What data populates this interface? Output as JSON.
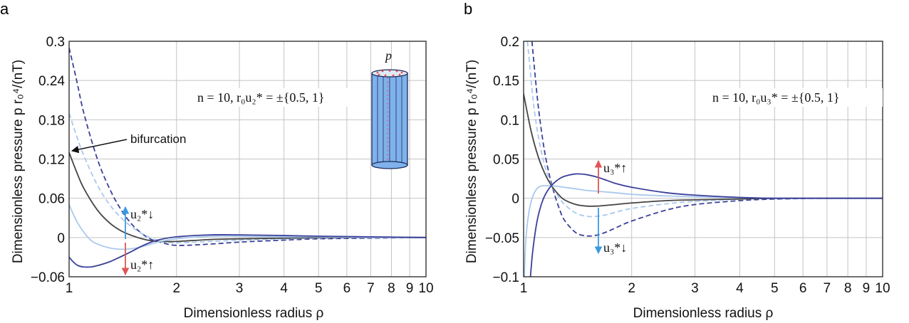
{
  "chart_data": [
    {
      "panel": "a",
      "type": "line",
      "xlabel": "Dimensionless radius ρ",
      "ylabel": "Dimensionless pressure p r₀⁴/(nT)",
      "xscale": "log",
      "xlim": [
        1,
        10
      ],
      "ylim": [
        -0.06,
        0.3
      ],
      "xticks": [
        "1",
        "2",
        "3",
        "4",
        "5",
        "6",
        "7",
        "8",
        "9",
        "10"
      ],
      "yticks": [
        "0.3",
        "0.24",
        "0.18",
        "0.12",
        "0.06",
        "0",
        "−0.06"
      ],
      "ytick_values": [
        0.3,
        0.24,
        0.18,
        0.12,
        0.06,
        0,
        -0.06
      ],
      "grid": true,
      "annotation_params": "n = 10,  r₀u₂* = ±{0.5, 1}",
      "annotation_pressure": "p",
      "annotation_bifurcation": "bifurcation",
      "arrow_up_label": "u₂*↓",
      "arrow_down_label": "u₂*↑",
      "series": [
        {
          "style": "dashed",
          "color": "#3b3f9a",
          "x": [
            1,
            1.05,
            1.1,
            1.2,
            1.3,
            1.4,
            1.5,
            1.6,
            1.7,
            1.8,
            2,
            2.5,
            3,
            4,
            5,
            7,
            10
          ],
          "y": [
            0.29,
            0.24,
            0.19,
            0.12,
            0.074,
            0.042,
            0.02,
            0.006,
            -0.003,
            -0.007,
            -0.012,
            -0.01,
            -0.007,
            -0.004,
            -0.002,
            -0.001,
            0
          ]
        },
        {
          "style": "dashed",
          "color": "#a9c9ec",
          "x": [
            1,
            1.05,
            1.1,
            1.2,
            1.3,
            1.4,
            1.5,
            1.6,
            1.7,
            1.8,
            2,
            2.5,
            3,
            4,
            5,
            7,
            10
          ],
          "y": [
            0.19,
            0.155,
            0.125,
            0.08,
            0.05,
            0.03,
            0.016,
            0.006,
            -0.001,
            -0.005,
            -0.008,
            -0.006,
            -0.004,
            -0.002,
            -0.001,
            0,
            0
          ]
        },
        {
          "style": "solid",
          "color": "#444444",
          "x": [
            1,
            1.05,
            1.1,
            1.2,
            1.3,
            1.4,
            1.5,
            1.6,
            1.7,
            1.8,
            2,
            2.5,
            3,
            4,
            5,
            7,
            10
          ],
          "y": [
            0.13,
            0.1,
            0.075,
            0.042,
            0.022,
            0.01,
            0.003,
            -0.002,
            -0.005,
            -0.006,
            -0.006,
            -0.003,
            -0.002,
            -0.001,
            0,
            0,
            0
          ]
        },
        {
          "style": "solid",
          "color": "#a9c9ec",
          "x": [
            1,
            1.05,
            1.1,
            1.15,
            1.2,
            1.3,
            1.4,
            1.5,
            1.6,
            1.7,
            1.8,
            2,
            2.5,
            3,
            4,
            5,
            7,
            10
          ],
          "y": [
            0.05,
            0.025,
            0.008,
            -0.004,
            -0.01,
            -0.016,
            -0.018,
            -0.017,
            -0.014,
            -0.01,
            -0.006,
            -0.002,
            0.002,
            0.002,
            0.001,
            0.001,
            0,
            0
          ]
        },
        {
          "style": "solid",
          "color": "#3b3f9a",
          "x": [
            1,
            1.03,
            1.06,
            1.1,
            1.15,
            1.2,
            1.3,
            1.4,
            1.5,
            1.6,
            1.7,
            1.8,
            2,
            2.5,
            3,
            4,
            5,
            7,
            10
          ],
          "y": [
            -0.03,
            -0.038,
            -0.043,
            -0.045,
            -0.045,
            -0.043,
            -0.037,
            -0.029,
            -0.021,
            -0.013,
            -0.007,
            -0.003,
            0.001,
            0.004,
            0.004,
            0.003,
            0.002,
            0.001,
            0
          ]
        }
      ]
    },
    {
      "panel": "b",
      "type": "line",
      "xlabel": "Dimensionless radius ρ",
      "ylabel": "Dimensionless pressure p r₀⁴/(nT)",
      "xscale": "log",
      "xlim": [
        1,
        10
      ],
      "ylim": [
        -0.1,
        0.2
      ],
      "xticks": [
        "1",
        "2",
        "3",
        "4",
        "5",
        "6",
        "7",
        "8",
        "9",
        "10"
      ],
      "yticks": [
        "0.2",
        "0.15",
        "0.1",
        "0.05",
        "0",
        "−0.05",
        "−0.1"
      ],
      "ytick_values": [
        0.2,
        0.15,
        0.1,
        0.05,
        0,
        -0.05,
        -0.1
      ],
      "grid": true,
      "annotation_params": "n = 10,  r₀u₃* = ±{0.5, 1}",
      "arrow_up_label": "u₃*↑",
      "arrow_down_label": "u₃*↓",
      "series": [
        {
          "style": "dashed",
          "color": "#3b3f9a",
          "x": [
            1.055,
            1.06,
            1.08,
            1.1,
            1.13,
            1.16,
            1.2,
            1.25,
            1.3,
            1.4,
            1.5,
            1.6,
            1.7,
            1.8,
            2,
            2.5,
            3,
            4,
            5,
            7,
            10
          ],
          "y": [
            0.2,
            0.19,
            0.15,
            0.115,
            0.075,
            0.045,
            0.016,
            -0.01,
            -0.028,
            -0.044,
            -0.048,
            -0.047,
            -0.043,
            -0.038,
            -0.029,
            -0.015,
            -0.008,
            -0.003,
            -0.001,
            0,
            0
          ]
        },
        {
          "style": "dashed",
          "color": "#a9c9ec",
          "x": [
            1.025,
            1.04,
            1.06,
            1.08,
            1.1,
            1.13,
            1.16,
            1.2,
            1.25,
            1.3,
            1.4,
            1.5,
            1.6,
            1.7,
            1.8,
            2,
            2.5,
            3,
            4,
            5,
            7,
            10
          ],
          "y": [
            0.2,
            0.17,
            0.13,
            0.1,
            0.078,
            0.052,
            0.033,
            0.015,
            0.002,
            -0.008,
            -0.019,
            -0.023,
            -0.023,
            -0.021,
            -0.018,
            -0.013,
            -0.007,
            -0.004,
            -0.001,
            0,
            0,
            0
          ]
        },
        {
          "style": "solid",
          "color": "#444444",
          "x": [
            1,
            1.05,
            1.1,
            1.15,
            1.2,
            1.25,
            1.3,
            1.4,
            1.5,
            1.6,
            1.7,
            1.8,
            2,
            2.5,
            3,
            4,
            5,
            7,
            10
          ],
          "y": [
            0.133,
            0.085,
            0.052,
            0.03,
            0.015,
            0.005,
            -0.002,
            -0.008,
            -0.01,
            -0.01,
            -0.009,
            -0.008,
            -0.006,
            -0.003,
            -0.002,
            -0.001,
            0,
            0,
            0
          ]
        },
        {
          "style": "solid",
          "color": "#a9c9ec",
          "x": [
            1.005,
            1.01,
            1.02,
            1.04,
            1.06,
            1.08,
            1.1,
            1.13,
            1.16,
            1.2,
            1.25,
            1.3,
            1.4,
            1.5,
            1.6,
            1.7,
            1.8,
            2,
            2.5,
            3,
            4,
            5,
            7,
            10
          ],
          "y": [
            -0.1,
            -0.07,
            -0.04,
            -0.012,
            0.002,
            0.01,
            0.014,
            0.016,
            0.016,
            0.016,
            0.015,
            0.014,
            0.012,
            0.01,
            0.009,
            0.008,
            0.007,
            0.005,
            0.003,
            0.002,
            0.001,
            0,
            0,
            0
          ]
        },
        {
          "style": "solid",
          "color": "#3b3f9a",
          "x": [
            1.045,
            1.05,
            1.06,
            1.08,
            1.1,
            1.13,
            1.16,
            1.2,
            1.25,
            1.3,
            1.4,
            1.5,
            1.6,
            1.7,
            1.8,
            2,
            2.5,
            3,
            4,
            5,
            7,
            10
          ],
          "y": [
            -0.1,
            -0.088,
            -0.068,
            -0.04,
            -0.021,
            -0.003,
            0.008,
            0.017,
            0.024,
            0.028,
            0.031,
            0.03,
            0.027,
            0.023,
            0.019,
            0.014,
            0.007,
            0.004,
            0.001,
            0,
            0,
            0
          ]
        }
      ]
    }
  ]
}
